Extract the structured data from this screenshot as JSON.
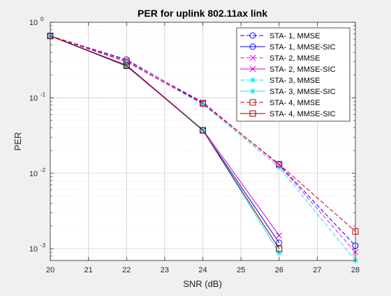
{
  "chart_data": {
    "type": "line",
    "title": "PER for uplink 802.11ax link",
    "xlabel": "SNR (dB)",
    "ylabel": "PER",
    "xlim": [
      20,
      28
    ],
    "ylim": [
      0.0007,
      1
    ],
    "yscale": "log",
    "grid": true,
    "minor_grid": true,
    "legend_position": "top-right",
    "x_ticks": [
      20,
      21,
      22,
      23,
      24,
      25,
      26,
      27,
      28
    ],
    "y_ticks": [
      {
        "value": 0.001,
        "base": "10",
        "exp": "-3"
      },
      {
        "value": 0.01,
        "base": "10",
        "exp": "-2"
      },
      {
        "value": 0.1,
        "base": "10",
        "exp": "-1"
      },
      {
        "value": 1,
        "base": "10",
        "exp": "0"
      }
    ],
    "series": [
      {
        "name": "STA- 1, MMSE",
        "color": "#0000ff",
        "marker": "circle",
        "dash": true,
        "x": [
          20,
          22,
          24,
          26,
          28
        ],
        "y": [
          0.66,
          0.32,
          0.085,
          0.013,
          0.0011
        ]
      },
      {
        "name": "STA- 1, MMSE-SIC",
        "color": "#0000ff",
        "marker": "circle",
        "dash": false,
        "x": [
          20,
          22,
          24,
          26
        ],
        "y": [
          0.66,
          0.27,
          0.037,
          0.0012
        ]
      },
      {
        "name": "STA- 2, MMSE",
        "color": "#ff00ff",
        "marker": "x",
        "dash": true,
        "x": [
          20,
          22,
          24,
          26,
          28
        ],
        "y": [
          0.66,
          0.31,
          0.088,
          0.0128,
          0.0009
        ]
      },
      {
        "name": "STA- 2, MMSE-SIC",
        "color": "#cc00cc",
        "marker": "x",
        "dash": false,
        "x": [
          20,
          22,
          24,
          26
        ],
        "y": [
          0.66,
          0.27,
          0.038,
          0.0015
        ]
      },
      {
        "name": "STA- 3, MMSE",
        "color": "#00e5e5",
        "marker": "star",
        "dash": true,
        "x": [
          20,
          22,
          24,
          26,
          28
        ],
        "y": [
          0.66,
          0.3,
          0.082,
          0.012,
          0.0007
        ]
      },
      {
        "name": "STA- 3, MMSE-SIC",
        "color": "#00e5e5",
        "marker": "star",
        "dash": false,
        "x": [
          20,
          22,
          24,
          26
        ],
        "y": [
          0.66,
          0.26,
          0.038,
          0.00088
        ]
      },
      {
        "name": "STA- 4, MMSE",
        "color": "#cc0000",
        "marker": "square",
        "dash": true,
        "x": [
          20,
          22,
          24,
          26,
          28
        ],
        "y": [
          0.66,
          0.3,
          0.084,
          0.0132,
          0.0017
        ]
      },
      {
        "name": "STA- 4, MMSE-SIC",
        "color": "#800000",
        "marker": "square",
        "dash": false,
        "x": [
          20,
          22,
          24,
          26
        ],
        "y": [
          0.66,
          0.265,
          0.037,
          0.001
        ]
      }
    ]
  }
}
